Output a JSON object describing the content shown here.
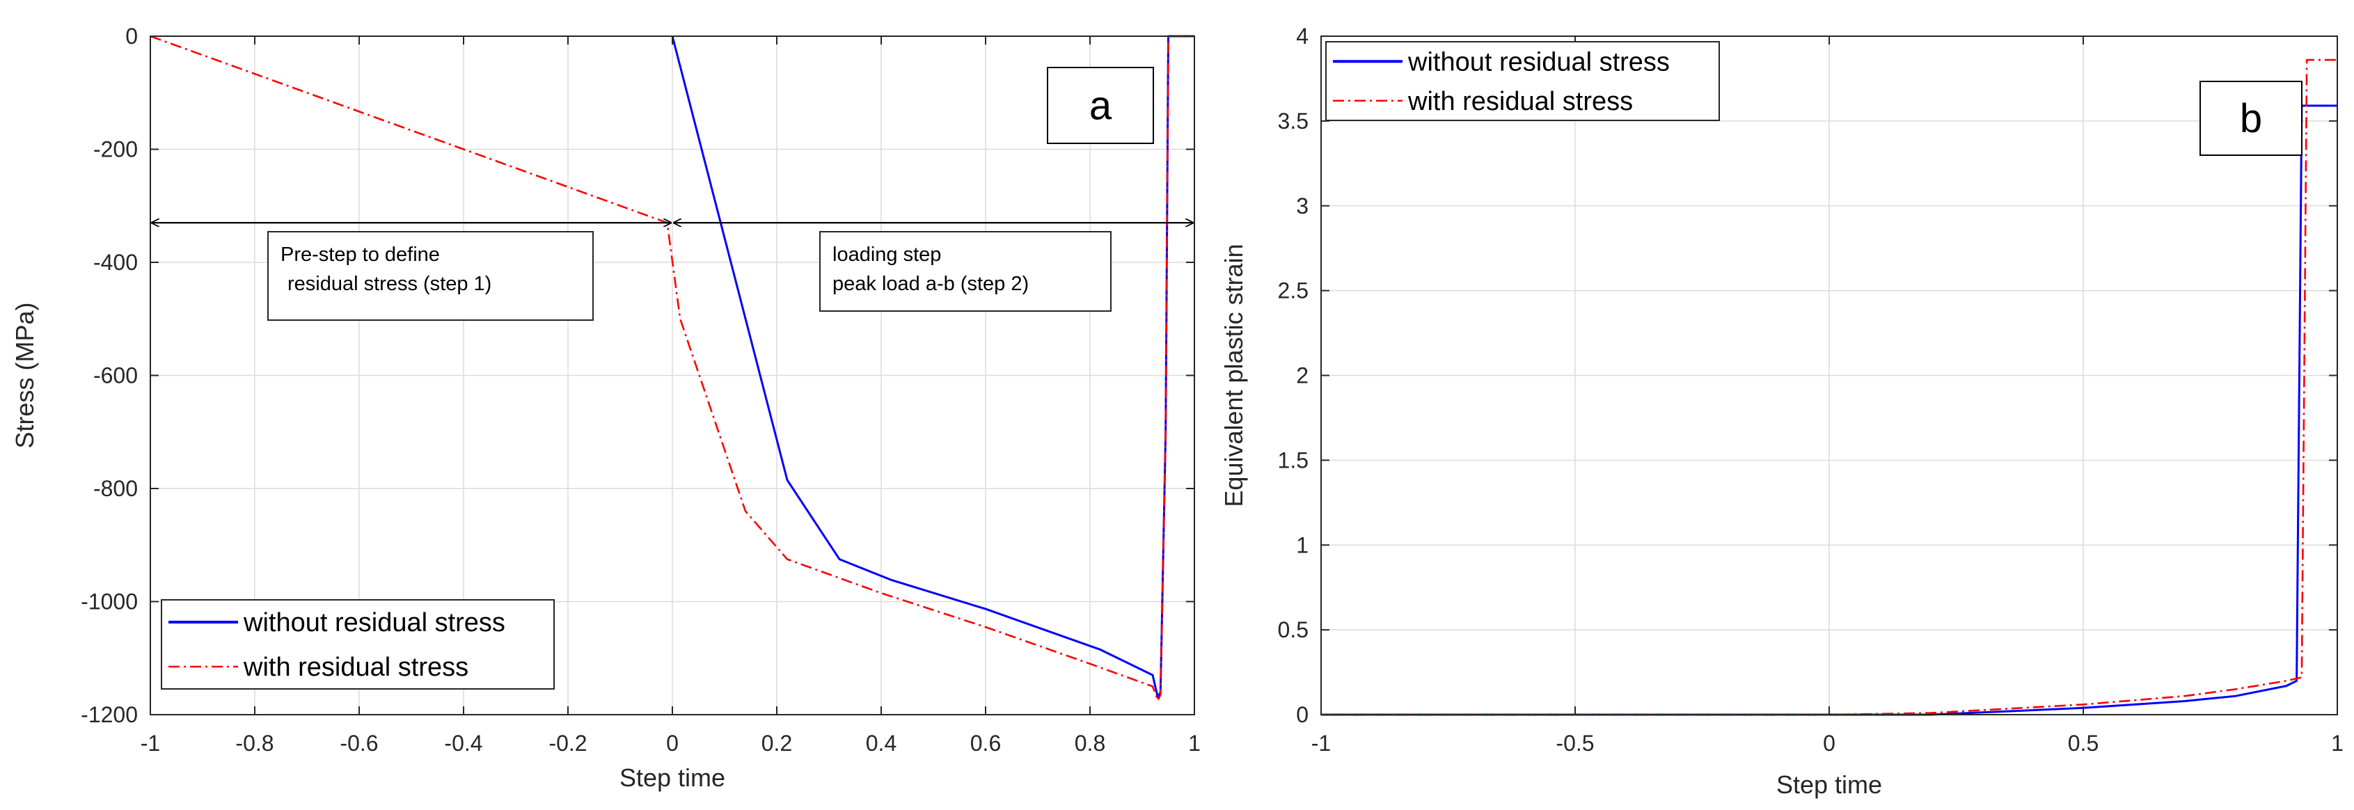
{
  "chart_data": [
    {
      "type": "line",
      "panel_label": "a",
      "xlabel": "Step time",
      "ylabel": "Stress (MPa)",
      "xlim": [
        -1,
        1
      ],
      "ylim": [
        -1200,
        0
      ],
      "xticks": [
        -1,
        -0.8,
        -0.6,
        -0.4,
        -0.2,
        0,
        0.2,
        0.4,
        0.6,
        0.8,
        1
      ],
      "xtick_labels": [
        "-1",
        "-0.8",
        "-0.6",
        "-0.4",
        "-0.2",
        "0",
        "0.2",
        "0.4",
        "0.6",
        "0.8",
        "1"
      ],
      "yticks": [
        0,
        -200,
        -400,
        -600,
        -800,
        -1000,
        -1200
      ],
      "ytick_labels": [
        "0",
        "-200",
        "-400",
        "-600",
        "-800",
        "-1000",
        "-1200"
      ],
      "grid": true,
      "legend": "bottom-left",
      "series": [
        {
          "name": "without residual stress",
          "color": "#0000ff",
          "style": "solid",
          "x": [
            0,
            0.22,
            0.32,
            0.42,
            0.6,
            0.82,
            0.92,
            0.93,
            0.935,
            0.945,
            0.95,
            1.0
          ],
          "y": [
            0,
            -785,
            -925,
            -962,
            -1013,
            -1085,
            -1130,
            -1170,
            -1160,
            -700,
            0,
            0
          ]
        },
        {
          "name": "with residual stress",
          "color": "#ff0000",
          "style": "dashdot",
          "x": [
            -1,
            -0.01,
            0.015,
            0.14,
            0.22,
            0.4,
            0.6,
            0.8,
            0.92,
            0.93,
            0.935,
            0.945,
            0.95,
            1.0
          ],
          "y": [
            0,
            -330,
            -500,
            -840,
            -925,
            -985,
            -1045,
            -1110,
            -1150,
            -1175,
            -1165,
            -700,
            0,
            0
          ]
        }
      ],
      "annotations": [
        {
          "lines": [
            "Pre-step to define",
            "residual stress (step 1)"
          ],
          "arrow_x": [
            -1,
            0
          ],
          "arrow_y": -330
        },
        {
          "lines": [
            "loading step",
            "peak load a-b (step 2)"
          ],
          "arrow_x": [
            0,
            1
          ],
          "arrow_y": -330
        }
      ]
    },
    {
      "type": "line",
      "panel_label": "b",
      "xlabel": "Step time",
      "ylabel": "Equivalent plastic strain",
      "xlim": [
        -1,
        1
      ],
      "ylim": [
        0,
        4
      ],
      "xticks": [
        -1,
        -0.5,
        0,
        0.5,
        1
      ],
      "xtick_labels": [
        "-1",
        "-0.5",
        "0",
        "0.5",
        "1"
      ],
      "yticks": [
        0,
        0.5,
        1,
        1.5,
        2,
        2.5,
        3,
        3.5,
        4
      ],
      "ytick_labels": [
        "0",
        "0.5",
        "1",
        "1.5",
        "2",
        "2.5",
        "3",
        "3.5",
        "4"
      ],
      "grid": true,
      "legend": "top-left",
      "series": [
        {
          "name": "without residual stress",
          "color": "#0000ff",
          "style": "solid",
          "x": [
            -1,
            0,
            0.2,
            0.5,
            0.7,
            0.8,
            0.9,
            0.92,
            0.93,
            0.94,
            1.0
          ],
          "y": [
            0,
            0,
            0,
            0.04,
            0.08,
            0.11,
            0.17,
            0.2,
            3.59,
            3.59,
            3.59
          ]
        },
        {
          "name": "with residual stress",
          "color": "#ff0000",
          "style": "dashdot",
          "x": [
            -1,
            0,
            0.2,
            0.5,
            0.7,
            0.8,
            0.9,
            0.93,
            0.94,
            0.95,
            1.0
          ],
          "y": [
            0,
            0,
            0.01,
            0.06,
            0.11,
            0.15,
            0.2,
            0.22,
            3.86,
            3.86,
            3.86
          ]
        }
      ]
    }
  ]
}
